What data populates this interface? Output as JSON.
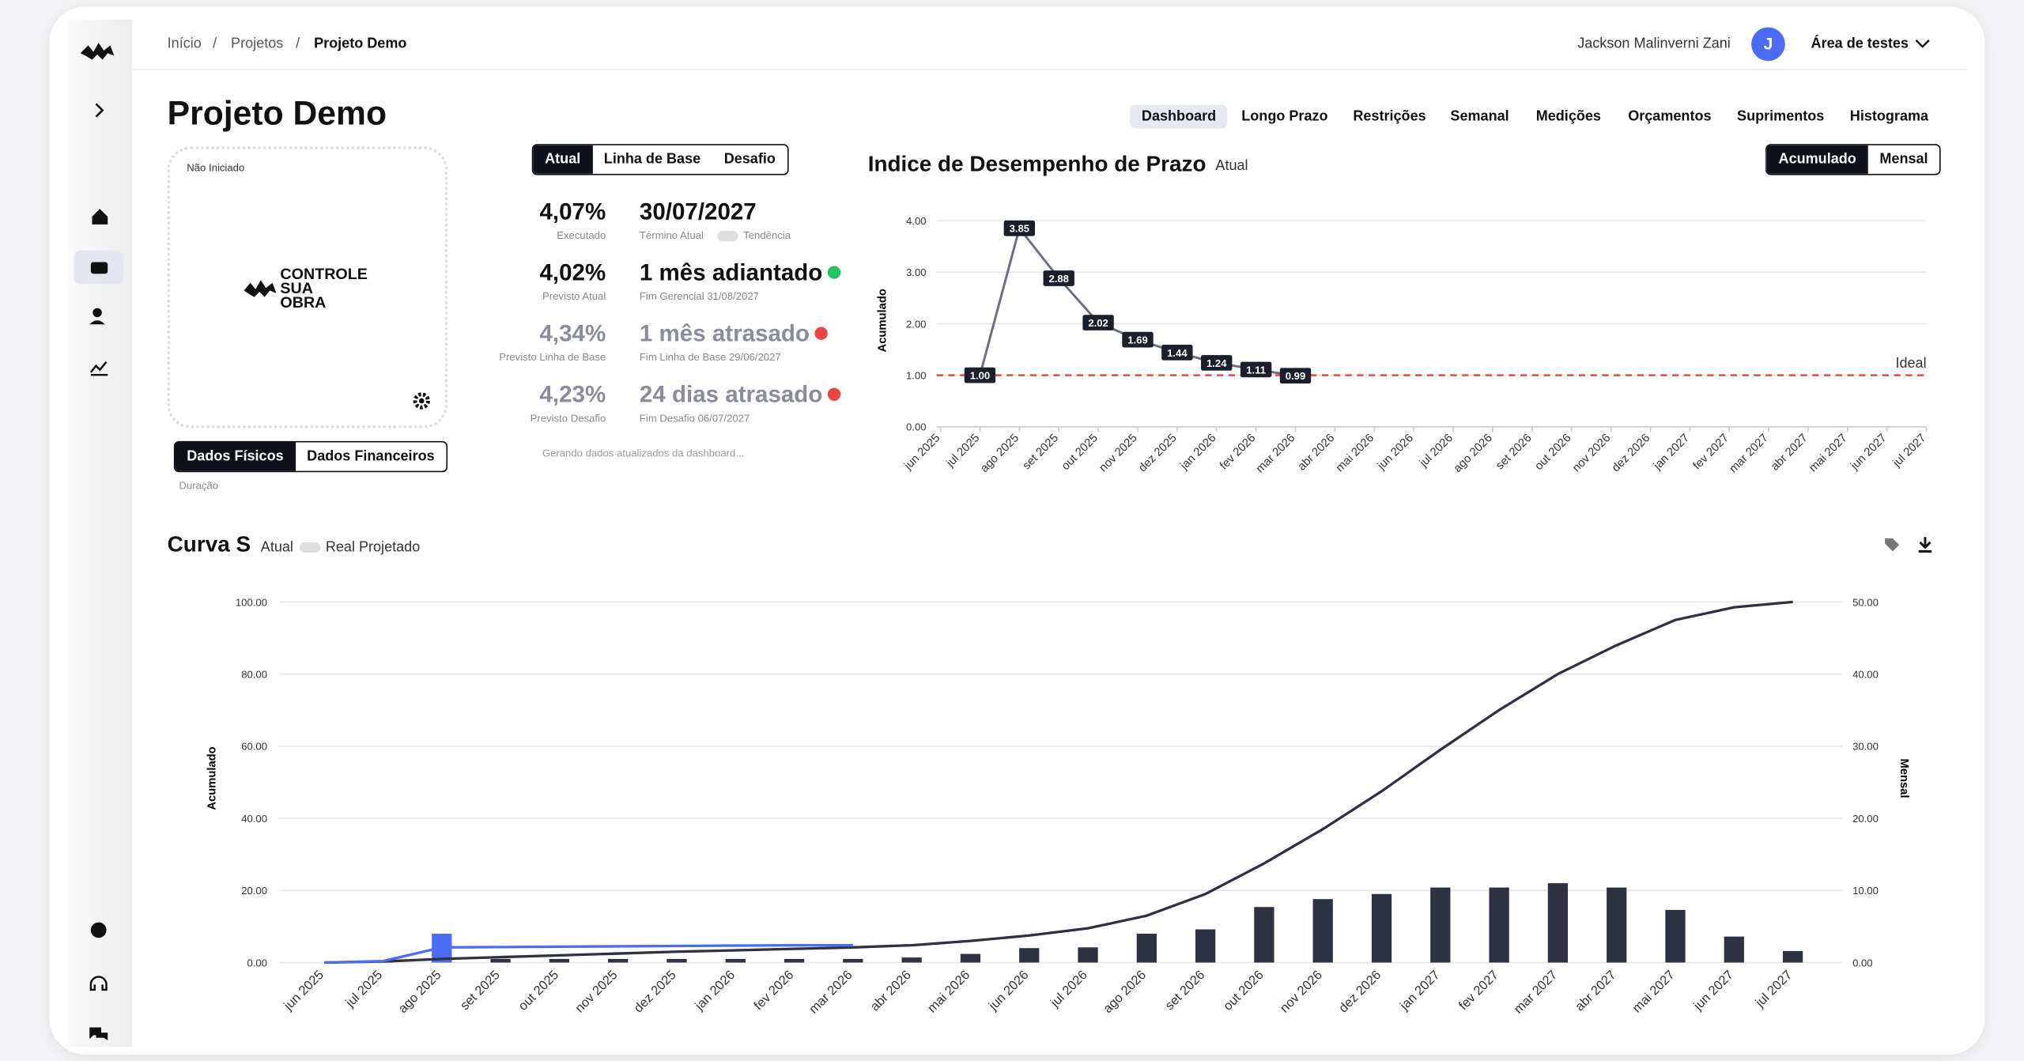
{
  "breadcrumb": [
    "Início",
    "Projetos",
    "Projeto Demo"
  ],
  "breadcrumb_separator": "/",
  "user": {
    "name": "Jackson Malinverni Zani",
    "initial": "J",
    "workspace": "Área de testes"
  },
  "title": "Projeto Demo",
  "tabs": [
    "Dashboard",
    "Longo Prazo",
    "Restrições",
    "Semanal",
    "Medições",
    "Orçamentos",
    "Suprimentos",
    "Histograma"
  ],
  "project_card": {
    "status": "Não Iniciado",
    "logo": [
      "CONTROLE",
      "SUA",
      "OBRA"
    ]
  },
  "data_tabs": [
    "Dados Físicos",
    "Dados Financeiros"
  ],
  "data_caption": "Duração",
  "scenario_tabs": [
    "Atual",
    "Linha de Base",
    "Desafio"
  ],
  "kpis": [
    {
      "value": "4,07%",
      "label": "Executado",
      "date": "30/07/2027",
      "date_label": "Término Atual",
      "toggle": "Tendência"
    },
    {
      "value": "4,02%",
      "label": "Previsto Atual",
      "date": "1 mês adiantado",
      "date_label": "Fim Gerencial 31/08/2027",
      "dot": "#22c55e"
    },
    {
      "value": "4,34%",
      "label": "Previsto Linha de Base",
      "date": "1 mês atrasado",
      "date_label": "Fim Linha de Base 29/06/2027",
      "dot": "#ef4444"
    },
    {
      "value": "4,23%",
      "label": "Previsto Desafio",
      "date": "24 dias atrasado",
      "date_label": "Fim Desafio 06/07/2027",
      "dot": "#ef4444"
    }
  ],
  "status_note": "Gerando dados atualizados da dashboard...",
  "spi_chart": {
    "type": "line",
    "title": "Indice de Desempenho de Prazo",
    "subtitle": "Atual",
    "ylabel": "Acumulado",
    "toggle": [
      "Acumulado",
      "Mensal"
    ],
    "categories": [
      "jun 2025",
      "jul 2025",
      "ago 2025",
      "set 2025",
      "out 2025",
      "nov 2025",
      "dez 2025",
      "jan 2026",
      "fev 2026",
      "mar 2026",
      "abr 2026",
      "mai 2026",
      "jun 2026",
      "jul 2026",
      "ago 2026",
      "set 2026",
      "out 2026",
      "nov 2026",
      "dez 2026",
      "jan 2027",
      "fev 2027",
      "mar 2027",
      "abr 2027",
      "mai 2027",
      "jun 2027",
      "jul 2027"
    ],
    "color": "#6b6e80",
    "values": [
      null,
      1.0,
      3.85,
      2.88,
      2.02,
      1.69,
      1.44,
      1.24,
      1.11,
      0.99,
      null,
      null,
      null,
      null,
      null,
      null,
      null,
      null,
      null,
      null,
      null,
      null,
      null,
      null,
      null,
      null
    ],
    "value_labels": [
      null,
      "1.00",
      "3.85",
      "2.88",
      "2.02",
      "1.69",
      "1.44",
      "1.24",
      "1.11",
      "0.99",
      null,
      null,
      null,
      null,
      null,
      null,
      null,
      null,
      null,
      null,
      null,
      null,
      null,
      null,
      null,
      null
    ],
    "ylim": [
      0,
      4
    ],
    "yticks": [
      {
        "value": 0,
        "label": "0.00"
      },
      {
        "value": 1,
        "label": "1.00"
      },
      {
        "value": 2,
        "label": "2.00"
      },
      {
        "value": 3,
        "label": "3.00"
      },
      {
        "value": 4,
        "label": "4.00"
      }
    ],
    "grid": true,
    "reference": {
      "value": 1,
      "label": "Ideal",
      "color": "#ef4444"
    }
  },
  "s_curve": {
    "type": "combo",
    "title": "Curva S",
    "subtitle": "Atual",
    "toggle_label": "Real Projetado",
    "ylabel": "Acumulado",
    "y2label": "Mensal",
    "categories": [
      "jun 2025",
      "jul 2025",
      "ago 2025",
      "set 2025",
      "out 2025",
      "nov 2025",
      "dez 2025",
      "jan 2026",
      "fev 2026",
      "mar 2026",
      "abr 2026",
      "mai 2026",
      "jun 2026",
      "jul 2026",
      "ago 2026",
      "set 2026",
      "out 2026",
      "nov 2026",
      "dez 2026",
      "jan 2027",
      "fev 2027",
      "mar 2027",
      "abr 2027",
      "mai 2027",
      "jun 2027",
      "jul 2027"
    ],
    "series": [
      {
        "type": "bar",
        "axis": "y2",
        "color": "#2d3142",
        "values": [
          null,
          0.3,
          0.6,
          0.5,
          0.5,
          0.5,
          0.5,
          0.5,
          0.5,
          0.5,
          0.7,
          1.2,
          2.0,
          2.1,
          4.0,
          4.6,
          7.7,
          8.8,
          9.5,
          10.4,
          10.4,
          11.0,
          10.4,
          7.3,
          3.6,
          1.6
        ]
      },
      {
        "type": "bar",
        "axis": "y2",
        "color": "#4a6cf7",
        "values": [
          null,
          null,
          4.0,
          null,
          null,
          null,
          null,
          null,
          null,
          null,
          null,
          null,
          null,
          null,
          null,
          null,
          null,
          null,
          null,
          null,
          null,
          null,
          null,
          null,
          null,
          null
        ]
      },
      {
        "type": "line",
        "color": "#2d3142",
        "values": [
          0,
          0.3,
          1.0,
          1.5,
          2.0,
          2.5,
          3.0,
          3.4,
          3.8,
          4.2,
          4.8,
          6.0,
          7.5,
          9.5,
          13,
          19,
          27.5,
          37,
          47.5,
          59,
          70,
          80,
          88,
          95,
          98.5,
          100
        ]
      },
      {
        "type": "line",
        "color": "#4a6cf7",
        "values": [
          0,
          0.4,
          4.2,
          4.3,
          4.4,
          4.5,
          4.6,
          4.7,
          4.8,
          4.8,
          null,
          null,
          null,
          null,
          null,
          null,
          null,
          null,
          null,
          null,
          null,
          null,
          null,
          null,
          null,
          null
        ]
      }
    ],
    "ylim": [
      0,
      100
    ],
    "yticks": [
      {
        "value": 0,
        "label": "0.00"
      },
      {
        "value": 20,
        "label": "20.00"
      },
      {
        "value": 40,
        "label": "40.00"
      },
      {
        "value": 60,
        "label": "60.00"
      },
      {
        "value": 80,
        "label": "80.00"
      },
      {
        "value": 100,
        "label": "100.00"
      }
    ],
    "y2lim": [
      0,
      50
    ],
    "y2ticks": [
      {
        "value": 0,
        "label": "0.00"
      },
      {
        "value": 10,
        "label": "10.00"
      },
      {
        "value": 20,
        "label": "20.00"
      },
      {
        "value": 30,
        "label": "30.00"
      },
      {
        "value": 40,
        "label": "40.00"
      },
      {
        "value": 50,
        "label": "50.00"
      }
    ],
    "grid": true
  }
}
